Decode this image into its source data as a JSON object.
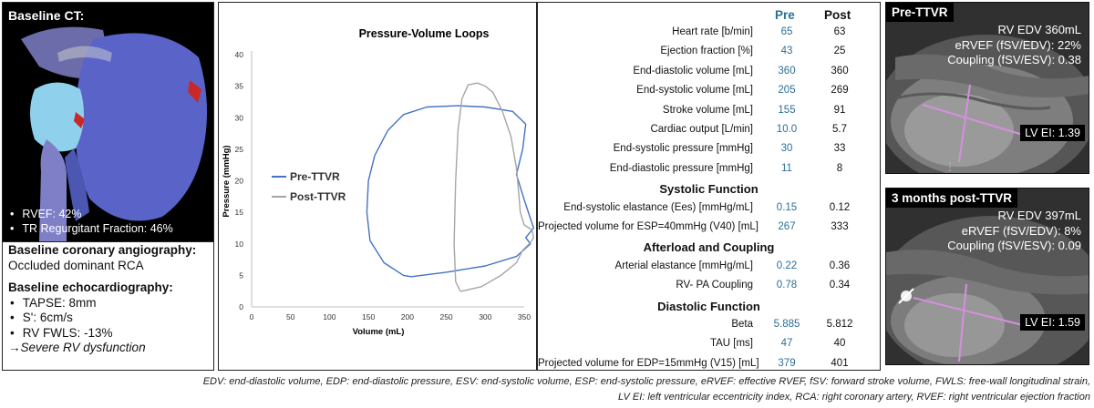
{
  "left": {
    "ct_title": "Baseline CT:",
    "ct_bullets": [
      "RVEF: 42%",
      "TR Regurgitant Fraction: 46%"
    ],
    "angio_title": "Baseline coronary angiography:",
    "angio_text": "Occluded dominant RCA",
    "echo_title": "Baseline echocardiography:",
    "echo_bullets": [
      "TAPSE: 8mm",
      "S': 6cm/s",
      "RV FWLS: -13%"
    ],
    "echo_conclusion": "Severe RV dysfunction",
    "arrow_glyph": "→"
  },
  "chart_data": {
    "type": "line",
    "title": "Pressure-Volume Loops",
    "xlabel": "Volume (mL)",
    "ylabel": "Pressure (mmHg)",
    "xlim": [
      0,
      350
    ],
    "ylim": [
      0,
      40
    ],
    "xticks": [
      0,
      50,
      100,
      150,
      200,
      250,
      300,
      350
    ],
    "yticks": [
      0,
      5,
      10,
      15,
      20,
      25,
      30,
      35,
      40
    ],
    "legend_position": "left-center",
    "series": [
      {
        "name": "Pre-TTVR",
        "color": "#4472c4",
        "x": [
          205,
          195,
          170,
          152,
          148,
          150,
          158,
          175,
          195,
          225,
          265,
          300,
          335,
          352,
          348,
          340,
          350,
          362,
          352,
          358,
          340,
          300,
          250,
          205
        ],
        "y": [
          4.8,
          5,
          7,
          10.5,
          15,
          20,
          24,
          28,
          30.5,
          31.7,
          31.9,
          31.7,
          31,
          29,
          25,
          21,
          17,
          12.5,
          11,
          10,
          8,
          6.5,
          5.5,
          4.8
        ]
      },
      {
        "name": "Post-TTVR",
        "color": "#a6a6a6",
        "x": [
          268,
          262,
          260,
          262,
          265,
          270,
          278,
          290,
          300,
          310,
          322,
          333,
          340,
          343,
          345,
          350,
          360,
          362,
          358,
          348,
          340,
          320,
          295,
          270,
          268
        ],
        "y": [
          2.5,
          4,
          10,
          20,
          28,
          33,
          35.2,
          35.5,
          35,
          34,
          31,
          27,
          22,
          18,
          15,
          13,
          12.2,
          11,
          10.2,
          9,
          7,
          5,
          3.2,
          2.5,
          2.5
        ]
      }
    ]
  },
  "table": {
    "header_pre": "Pre",
    "header_post": "Post",
    "rows": [
      {
        "label": "Heart rate [b/min]",
        "pre": "65",
        "post": "63"
      },
      {
        "label": "Ejection fraction [%]",
        "pre": "43",
        "post": "25"
      },
      {
        "label": "End-diastolic volume [mL]",
        "pre": "360",
        "post": "360"
      },
      {
        "label": "End-systolic volume [mL]",
        "pre": "205",
        "post": "269"
      },
      {
        "label": "Stroke volume [mL]",
        "pre": "155",
        "post": "91"
      },
      {
        "label": "Cardiac output [L/min]",
        "pre": "10.0",
        "post": "5.7"
      },
      {
        "label": "End-systolic pressure [mmHg]",
        "pre": "30",
        "post": "33"
      },
      {
        "label": "End-diastolic pressure [mmHg]",
        "pre": "11",
        "post": "8"
      },
      {
        "section": "Systolic Function"
      },
      {
        "label": "End-systolic elastance (Ees) [mmHg/mL]",
        "pre": "0.15",
        "post": "0.12"
      },
      {
        "label": "Projected volume for ESP=40mmHg (V40) [mL]",
        "pre": "267",
        "post": "333"
      },
      {
        "section": "Afterload and Coupling"
      },
      {
        "label": "Arterial elastance [mmHg/mL]",
        "pre": "0.22",
        "post": "0.36"
      },
      {
        "label": "RV- PA Coupling",
        "pre": "0.78",
        "post": "0.34"
      },
      {
        "section": "Diastolic Function"
      },
      {
        "label": "Beta",
        "pre": "5.885",
        "post": "5.812"
      },
      {
        "label": "TAU [ms]",
        "pre": "47",
        "post": "40"
      },
      {
        "label": "Projected volume for EDP=15mmHg (V15) [mL]",
        "pre": "379",
        "post": "401"
      }
    ]
  },
  "pre_panel": {
    "title": "Pre-TTVR",
    "info": [
      "RV EDV 360mL",
      "eRVEF (fSV/EDV): 22%",
      "Coupling (fSV/ESV): 0.38"
    ],
    "lv_ei": "LV EI: 1.39"
  },
  "post_panel": {
    "title": "3 months post-TTVR",
    "info": [
      "RV EDV 397mL",
      "eRVEF (fSV/EDV): 8%",
      "Coupling (fSV/ESV): 0.09"
    ],
    "lv_ei": "LV EI: 1.59"
  },
  "footer": {
    "line1": "EDV: end-diastolic volume, EDP: end-diastolic pressure, ESV: end-systolic volume, ESP: end-systolic pressure, eRVEF: effective RVEF, fSV: forward stroke volume, FWLS: free-wall longitudinal strain,",
    "line2": "LV EI: left ventricular eccentricity index, RCA: right coronary artery, RVEF: right ventricular ejection fraction"
  },
  "colors": {
    "pre_value": "#2a6f97",
    "pre_series": "#4472c4",
    "post_series": "#a6a6a6",
    "caliper": "#d68fe0"
  }
}
